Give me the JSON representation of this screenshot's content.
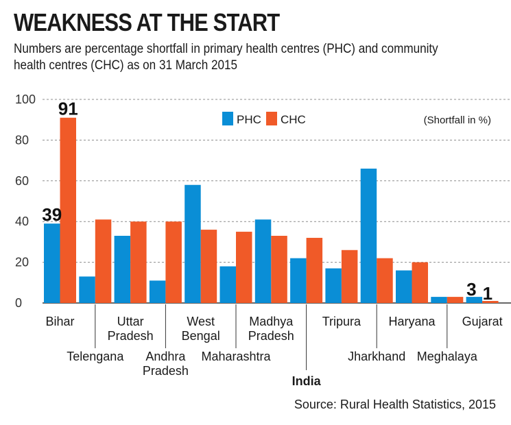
{
  "header": {
    "title": "WEAKNESS AT THE START",
    "subtitle": "Numbers are percentage shortfall in primary health centres (PHC) and community health centres (CHC) as on 31 March 2015"
  },
  "footer": {
    "source": "Source: Rural Health Statistics, 2015"
  },
  "chart_data": {
    "type": "bar",
    "title": "WEAKNESS AT THE START",
    "unit_note": "(Shortfall in %)",
    "ylim": [
      0,
      100
    ],
    "yticks": [
      0,
      20,
      40,
      60,
      80,
      100
    ],
    "grid": true,
    "legend_position": "top-center",
    "categories": [
      "Bihar",
      "Telengana",
      "Uttar Pradesh",
      "Andhra Pradesh",
      "West Bengal",
      "Maharashtra",
      "Madhya Pradesh",
      "India",
      "Tripura",
      "Jharkhand",
      "Haryana",
      "Meghalaya",
      "Gujarat"
    ],
    "category_lines": [
      [
        "Bihar"
      ],
      [
        "Telengana"
      ],
      [
        "Uttar",
        "Pradesh"
      ],
      [
        "Andhra",
        "Pradesh"
      ],
      [
        "West",
        "Bengal"
      ],
      [
        "Maharashtra"
      ],
      [
        "Madhya",
        "Pradesh"
      ],
      [
        "India"
      ],
      [
        "Tripura"
      ],
      [
        "Jharkhand"
      ],
      [
        "Haryana"
      ],
      [
        "Meghalaya"
      ],
      [
        "Gujarat"
      ]
    ],
    "highlight_category": "India",
    "series": [
      {
        "name": "PHC",
        "color": "#0a8ed6",
        "values": [
          39,
          13,
          33,
          11,
          58,
          18,
          41,
          22,
          17,
          66,
          16,
          3,
          3
        ]
      },
      {
        "name": "CHC",
        "color": "#f05a28",
        "values": [
          91,
          41,
          40,
          40,
          36,
          35,
          33,
          32,
          26,
          22,
          20,
          3,
          1
        ]
      }
    ],
    "data_labels": [
      {
        "category": "Bihar",
        "series": "PHC",
        "text": "39"
      },
      {
        "category": "Bihar",
        "series": "CHC",
        "text": "91"
      },
      {
        "category": "Gujarat",
        "series": "PHC",
        "text": "3"
      },
      {
        "category": "Gujarat",
        "series": "CHC",
        "text": "1"
      }
    ]
  }
}
